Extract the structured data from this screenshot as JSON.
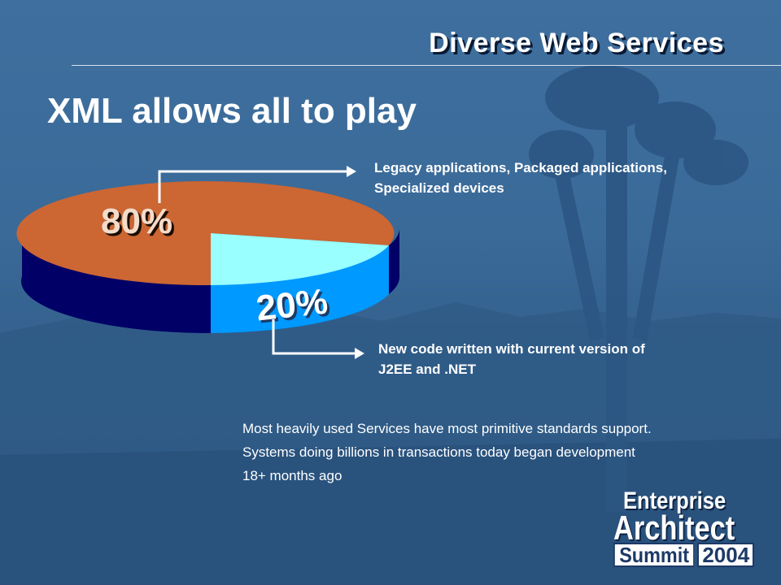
{
  "header": {
    "title": "Diverse Web Services"
  },
  "slide": {
    "title": "XML allows all to play"
  },
  "chart_data": {
    "type": "pie",
    "categories": [
      "Legacy applications, Packaged applications, Specialized devices",
      "New code written with current version of J2EE and .NET"
    ],
    "values": [
      80,
      20
    ],
    "value_labels": [
      "80%",
      "20%"
    ],
    "colors": {
      "slice_80_top": "#cc6633",
      "slice_80_side": "#000066",
      "slice_20_top": "#99ffff",
      "slice_20_side": "#0099ff"
    }
  },
  "callouts": {
    "top": {
      "line1": "Legacy applications, Packaged applications,",
      "line2": "Specialized devices"
    },
    "bottom": {
      "line1": "New code written with current version of",
      "line2": "J2EE and .NET"
    }
  },
  "body": {
    "line1": "Most heavily used Services have most primitive standards support.",
    "line2": "Systems doing billions in transactions today began development",
    "line3": "18+ months ago"
  },
  "logo": {
    "line1": "Enterprise",
    "line2": "Architect",
    "line3": "Summit",
    "year": "2004"
  }
}
